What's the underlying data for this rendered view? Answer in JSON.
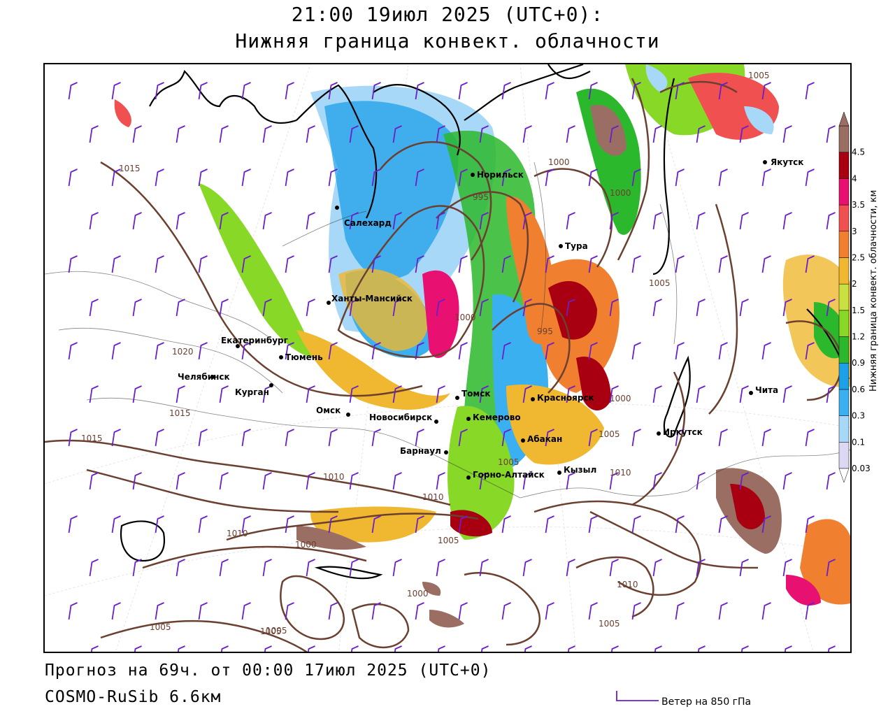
{
  "header": {
    "datetime": "21:00 19июл 2025 (UTC+0):",
    "field": "Нижняя граница конвект. облачности"
  },
  "footer": {
    "forecast": "Прогноз на 69ч. от 00:00 17июл 2025 (UTC+0)",
    "model": "COSMO-RuSib 6.6км",
    "wind_legend": "Ветер на 850 гПа"
  },
  "colorbar": {
    "title": "Нижняя граница конвект. облачности, км",
    "levels": [
      "0.03",
      "0.1",
      "0.3",
      "0.6",
      "0.9",
      "1.2",
      "1.5",
      "2",
      "2.5",
      "3",
      "3.5",
      "4",
      "4.5"
    ],
    "colors": [
      "#dcd8f4",
      "#a8d8f8",
      "#3ab0f0",
      "#1ea0e8",
      "#2cb82c",
      "#88d828",
      "#c8e040",
      "#f0b830",
      "#f08030",
      "#f05050",
      "#e81070",
      "#a80010",
      "#9a6e62"
    ]
  },
  "cities": [
    {
      "name": "Салехард"
    },
    {
      "name": "Норильск"
    },
    {
      "name": "Тура"
    },
    {
      "name": "Якутск"
    },
    {
      "name": "Ханты-Мансийск"
    },
    {
      "name": "Екатеринбург"
    },
    {
      "name": "Тюмень"
    },
    {
      "name": "Челябинск"
    },
    {
      "name": "Курган"
    },
    {
      "name": "Омск"
    },
    {
      "name": "Новосибирск"
    },
    {
      "name": "Томск"
    },
    {
      "name": "Кемерово"
    },
    {
      "name": "Барнаул"
    },
    {
      "name": "Красноярск"
    },
    {
      "name": "Абакан"
    },
    {
      "name": "Горно-Алтайск"
    },
    {
      "name": "Кызыл"
    },
    {
      "name": "Иркутск"
    },
    {
      "name": "Чита"
    }
  ],
  "isobars": [
    "1015",
    "1020",
    "1015",
    "1015",
    "1010",
    "1010",
    "1010",
    "1005",
    "1000",
    "1005",
    "1000",
    "1005",
    "1005",
    "1000",
    "995",
    "1000",
    "1000",
    "1005",
    "1010",
    "1005",
    "1005",
    "1005",
    "1010",
    "1005",
    "995",
    "1000"
  ]
}
